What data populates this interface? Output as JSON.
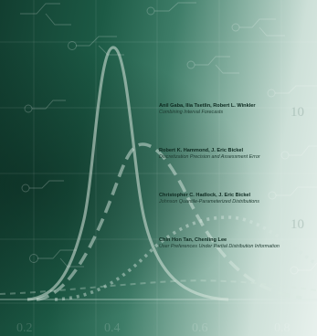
{
  "entries": [
    {
      "authors": "Anil Gaba, Ilia Tsetlin, Robert L. Winkler",
      "title": "Combining Interval Forecasts"
    },
    {
      "authors": "Robert K. Hammond, J. Eric Bickel",
      "title": "Discretization Precision and Assessment Error"
    },
    {
      "authors": "Christopher C. Hadlock, J. Eric Bickel",
      "title": "Johnson Quantile-Parameterized Distributions"
    },
    {
      "authors": "Chin Hon Tan, Chenling Lee",
      "title": "User Preferences Under Partial Distribution Information"
    }
  ],
  "axis_ticks": [
    "0.2",
    "0.4",
    "0.6",
    "0.8"
  ],
  "watermark_numbers": [
    "10",
    "10"
  ],
  "colors": {
    "background_dark": "#123e30",
    "background_mid": "#3e7d68",
    "background_light": "#e8f1ed",
    "curve": "#d8e7df",
    "text": "#0e2a20"
  }
}
